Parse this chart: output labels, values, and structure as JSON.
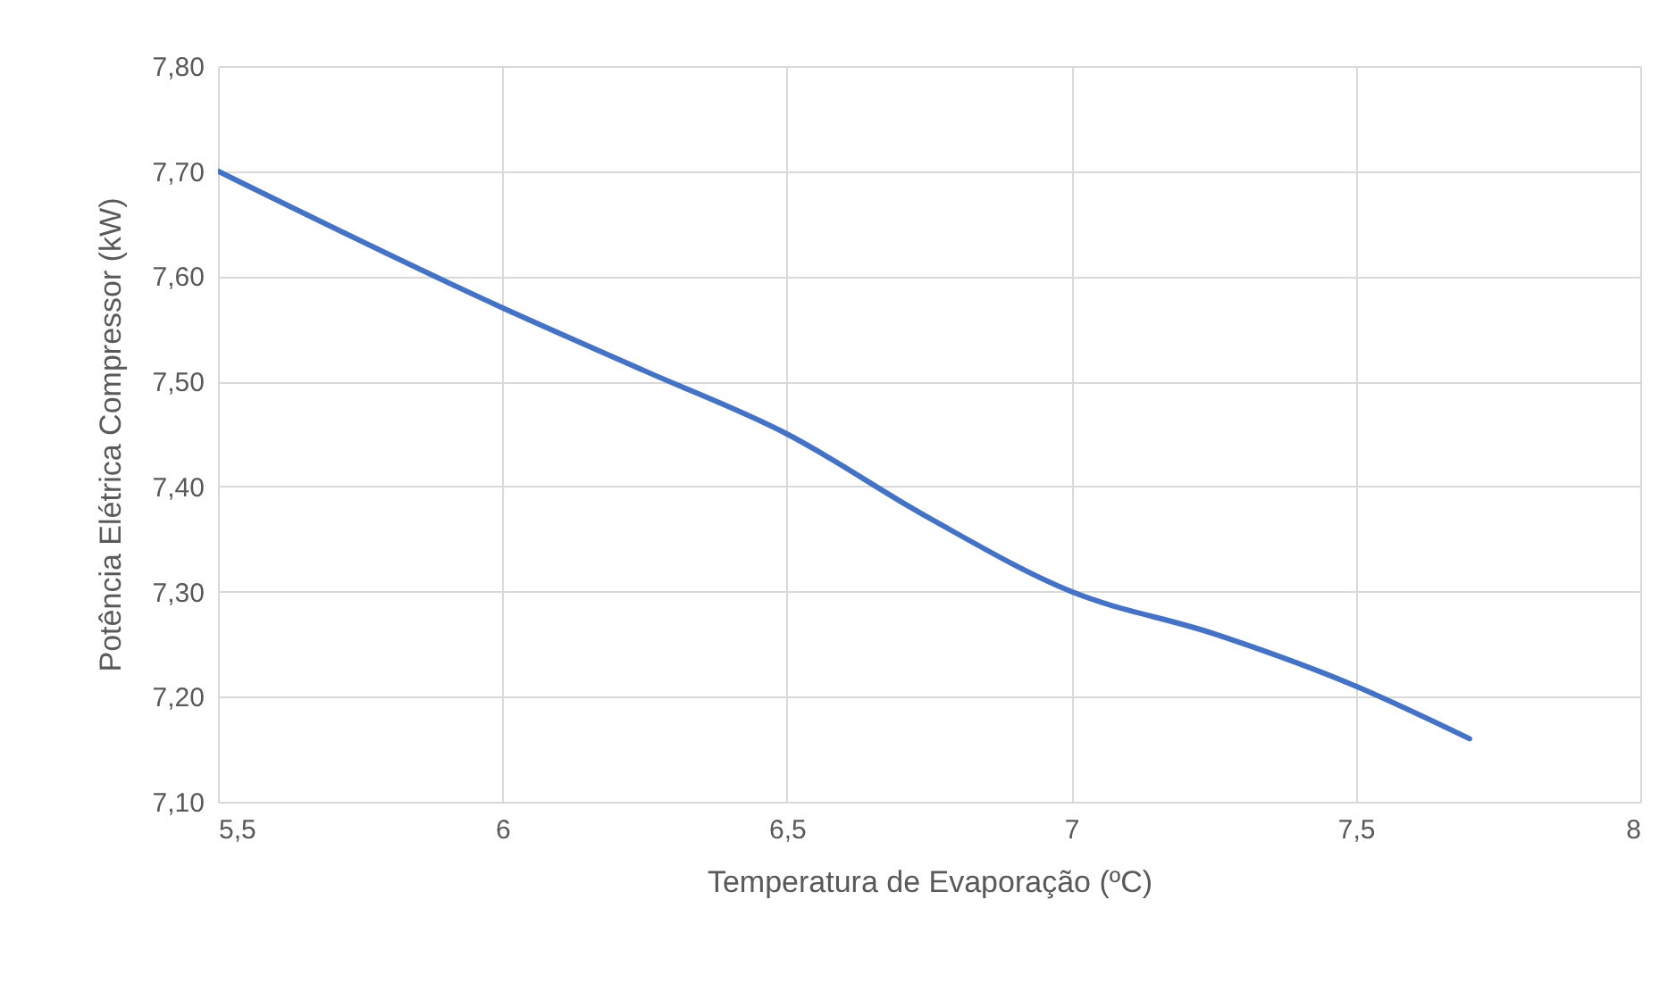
{
  "chart_data": {
    "type": "line",
    "xlabel": "Temperatura de Evaporação (ºC)",
    "ylabel": "Potência Elétrica Compressor (kW)",
    "x": [
      5.5,
      6,
      6.25,
      6.5,
      6.75,
      7,
      7.25,
      7.5,
      7.7
    ],
    "series": [
      {
        "color": "#4472c4",
        "values": [
          7.7,
          7.57,
          7.51,
          7.45,
          7.37,
          7.3,
          7.26,
          7.21,
          7.16
        ]
      }
    ],
    "xlim": [
      5.5,
      8
    ],
    "xticks": [
      {
        "value": 5.5,
        "label": "5,5"
      },
      6,
      {
        "value": 6.5,
        "label": "6,5"
      },
      7,
      {
        "value": 7.5,
        "label": "7,5"
      },
      8
    ],
    "ylim": [
      7.1,
      7.8
    ],
    "yticks": [
      {
        "value": 7.1,
        "label": "7,10"
      },
      {
        "value": 7.2,
        "label": "7,20"
      },
      {
        "value": 7.3,
        "label": "7,30"
      },
      {
        "value": 7.4,
        "label": "7,40"
      },
      {
        "value": 7.5,
        "label": "7,50"
      },
      {
        "value": 7.6,
        "label": "7,60"
      },
      {
        "value": 7.7,
        "label": "7,70"
      },
      {
        "value": 7.8,
        "label": "7,80"
      }
    ],
    "grid": true,
    "marker": "none",
    "line_style": "solid"
  }
}
